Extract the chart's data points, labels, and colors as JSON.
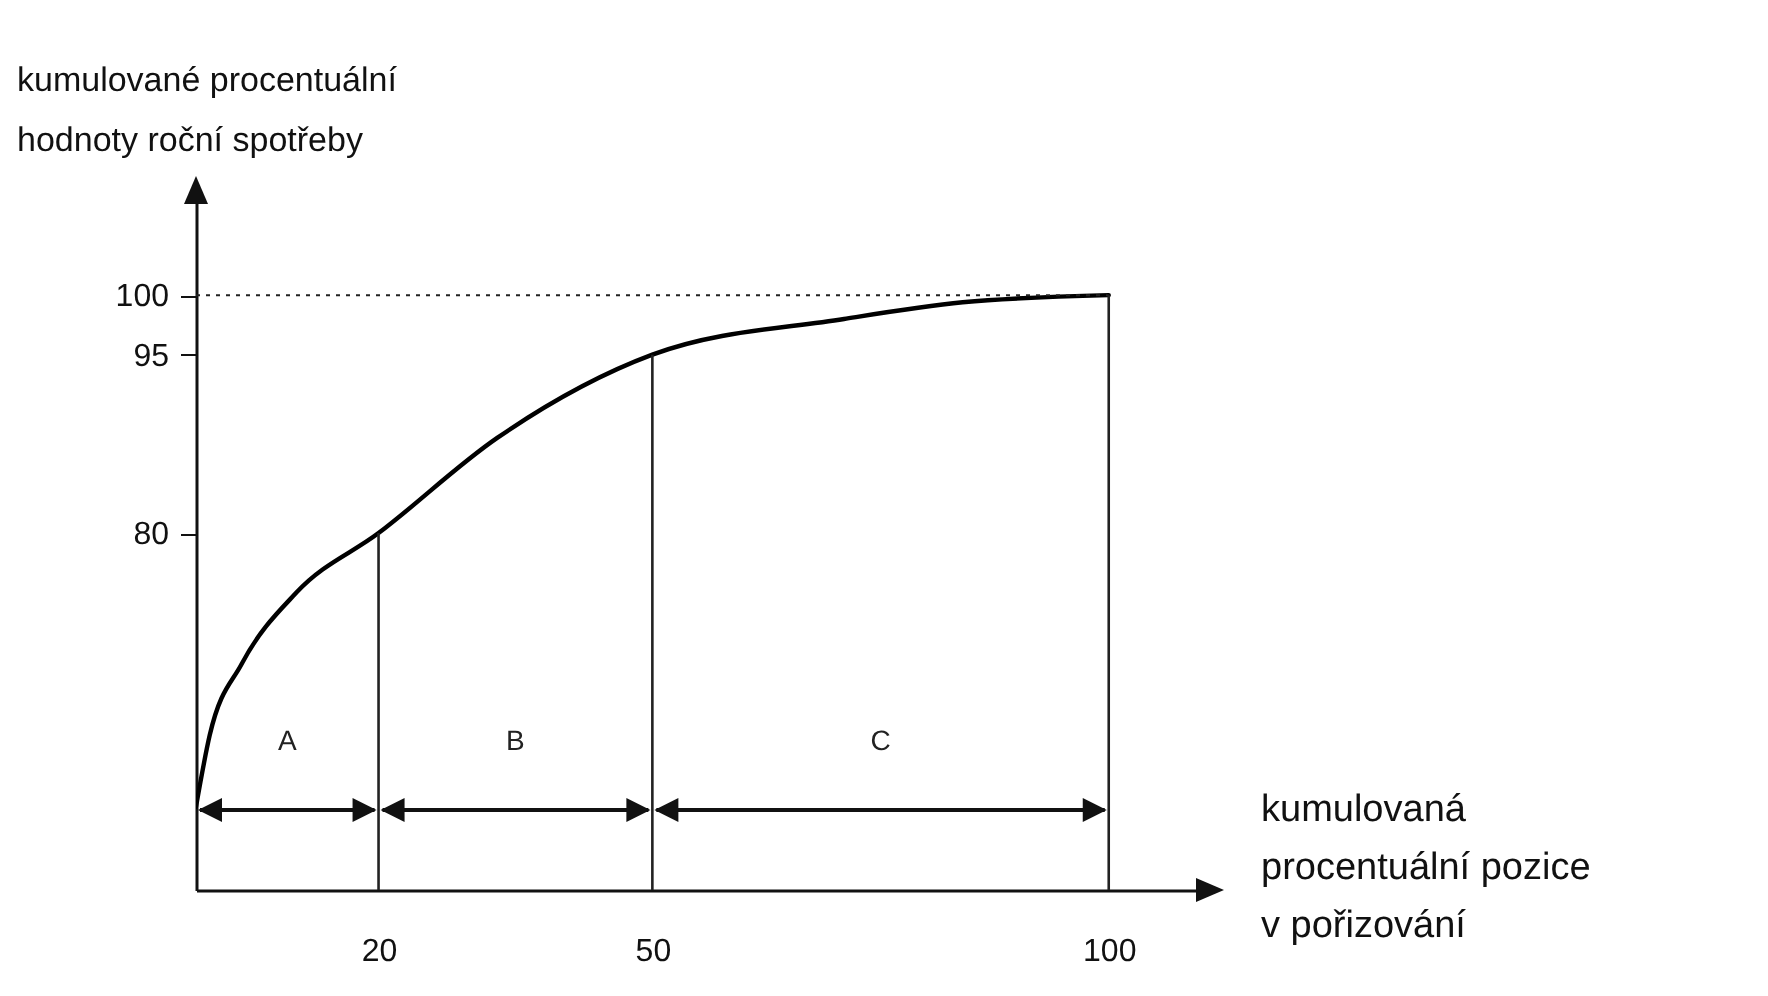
{
  "chart_data": {
    "type": "line",
    "xlabel": "kumulovaná\nprocentuální pozice\nv pořizování",
    "ylabel": "kumulované procentuální\nhodnoty roční spotřeby",
    "x": [
      0,
      1.5,
      5,
      11,
      20,
      33,
      50,
      71,
      84,
      100
    ],
    "series": [
      {
        "color": "#000000",
        "values": [
          57,
          63,
          69,
          75,
          80,
          88,
          95,
          98,
          99.4,
          100
        ]
      }
    ],
    "xlim": [
      0,
      110
    ],
    "ylim": [
      50,
      108
    ],
    "xticks": [
      20,
      50,
      100
    ],
    "yticks": [
      80,
      95,
      100
    ],
    "line_style": "solid",
    "ref_lines": [
      {
        "axis": "y",
        "value": 100,
        "line_style": "dotted"
      },
      {
        "axis": "x",
        "value": 20
      },
      {
        "axis": "x",
        "value": 50
      },
      {
        "axis": "x",
        "value": 100
      }
    ],
    "annotations": [
      "A",
      "B",
      "C"
    ]
  }
}
